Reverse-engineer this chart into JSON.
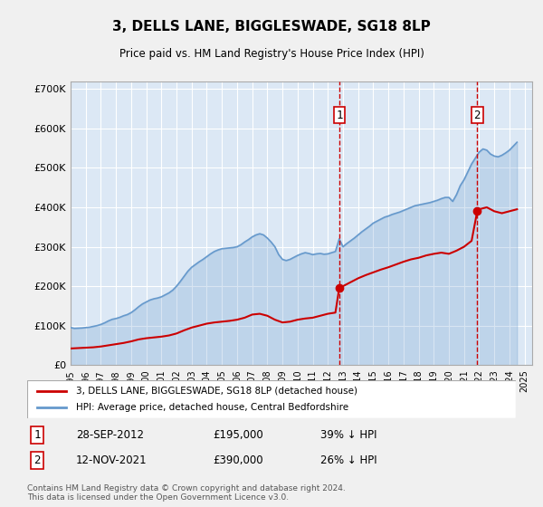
{
  "title": "3, DELLS LANE, BIGGLESWADE, SG18 8LP",
  "subtitle": "Price paid vs. HM Land Registry's House Price Index (HPI)",
  "ylabel_ticks": [
    "£0",
    "£100K",
    "£200K",
    "£300K",
    "£400K",
    "£500K",
    "£600K",
    "£700K"
  ],
  "ylim": [
    0,
    720000
  ],
  "xlim_start": 1995.0,
  "xlim_end": 2025.5,
  "background_color": "#e8f0f8",
  "plot_bg_color": "#dce8f5",
  "grid_color": "#ffffff",
  "line_red_color": "#cc0000",
  "line_blue_color": "#6699cc",
  "event1_x": 2012.75,
  "event1_y": 195000,
  "event2_x": 2021.87,
  "event2_y": 390000,
  "legend_line1": "3, DELLS LANE, BIGGLESWADE, SG18 8LP (detached house)",
  "legend_line2": "HPI: Average price, detached house, Central Bedfordshire",
  "annotation1_label": "1",
  "annotation1_date": "28-SEP-2012",
  "annotation1_price": "£195,000",
  "annotation1_pct": "39% ↓ HPI",
  "annotation2_label": "2",
  "annotation2_date": "12-NOV-2021",
  "annotation2_price": "£390,000",
  "annotation2_pct": "26% ↓ HPI",
  "footer": "Contains HM Land Registry data © Crown copyright and database right 2024.\nThis data is licensed under the Open Government Licence v3.0.",
  "hpi_data_x": [
    1995.0,
    1995.25,
    1995.5,
    1995.75,
    1996.0,
    1996.25,
    1996.5,
    1996.75,
    1997.0,
    1997.25,
    1997.5,
    1997.75,
    1998.0,
    1998.25,
    1998.5,
    1998.75,
    1999.0,
    1999.25,
    1999.5,
    1999.75,
    2000.0,
    2000.25,
    2000.5,
    2000.75,
    2001.0,
    2001.25,
    2001.5,
    2001.75,
    2002.0,
    2002.25,
    2002.5,
    2002.75,
    2003.0,
    2003.25,
    2003.5,
    2003.75,
    2004.0,
    2004.25,
    2004.5,
    2004.75,
    2005.0,
    2005.25,
    2005.5,
    2005.75,
    2006.0,
    2006.25,
    2006.5,
    2006.75,
    2007.0,
    2007.25,
    2007.5,
    2007.75,
    2008.0,
    2008.25,
    2008.5,
    2008.75,
    2009.0,
    2009.25,
    2009.5,
    2009.75,
    2010.0,
    2010.25,
    2010.5,
    2010.75,
    2011.0,
    2011.25,
    2011.5,
    2011.75,
    2012.0,
    2012.25,
    2012.5,
    2012.75,
    2013.0,
    2013.25,
    2013.5,
    2013.75,
    2014.0,
    2014.25,
    2014.5,
    2014.75,
    2015.0,
    2015.25,
    2015.5,
    2015.75,
    2016.0,
    2016.25,
    2016.5,
    2016.75,
    2017.0,
    2017.25,
    2017.5,
    2017.75,
    2018.0,
    2018.25,
    2018.5,
    2018.75,
    2019.0,
    2019.25,
    2019.5,
    2019.75,
    2020.0,
    2020.25,
    2020.5,
    2020.75,
    2021.0,
    2021.25,
    2021.5,
    2021.75,
    2022.0,
    2022.25,
    2022.5,
    2022.75,
    2023.0,
    2023.25,
    2023.5,
    2023.75,
    2024.0,
    2024.25,
    2024.5
  ],
  "hpi_data_y": [
    95000,
    93000,
    93500,
    94000,
    95000,
    96000,
    98000,
    100000,
    103000,
    107000,
    112000,
    116000,
    118000,
    121000,
    125000,
    128000,
    133000,
    140000,
    148000,
    155000,
    160000,
    165000,
    168000,
    170000,
    173000,
    178000,
    183000,
    190000,
    200000,
    212000,
    225000,
    238000,
    248000,
    255000,
    262000,
    268000,
    275000,
    282000,
    288000,
    292000,
    295000,
    296000,
    297000,
    298000,
    300000,
    305000,
    312000,
    318000,
    325000,
    330000,
    333000,
    330000,
    322000,
    312000,
    300000,
    280000,
    268000,
    265000,
    268000,
    273000,
    278000,
    282000,
    285000,
    283000,
    280000,
    282000,
    283000,
    281000,
    282000,
    285000,
    288000,
    320000,
    300000,
    308000,
    315000,
    322000,
    330000,
    338000,
    345000,
    352000,
    360000,
    365000,
    370000,
    375000,
    378000,
    382000,
    385000,
    388000,
    392000,
    396000,
    400000,
    404000,
    406000,
    408000,
    410000,
    412000,
    415000,
    418000,
    422000,
    425000,
    425000,
    415000,
    432000,
    455000,
    470000,
    490000,
    510000,
    525000,
    540000,
    548000,
    545000,
    535000,
    530000,
    528000,
    532000,
    538000,
    545000,
    555000,
    565000
  ],
  "red_data_x": [
    1995.0,
    1995.5,
    1996.0,
    1996.5,
    1997.0,
    1997.5,
    1998.0,
    1998.5,
    1999.0,
    1999.5,
    2000.0,
    2000.5,
    2001.0,
    2001.5,
    2002.0,
    2002.5,
    2003.0,
    2003.5,
    2004.0,
    2004.5,
    2005.0,
    2005.5,
    2006.0,
    2006.5,
    2007.0,
    2007.5,
    2008.0,
    2008.5,
    2009.0,
    2009.5,
    2010.0,
    2010.5,
    2011.0,
    2011.5,
    2012.0,
    2012.5,
    2012.75,
    2013.0,
    2013.5,
    2014.0,
    2014.5,
    2015.0,
    2015.5,
    2016.0,
    2016.5,
    2017.0,
    2017.5,
    2018.0,
    2018.5,
    2019.0,
    2019.5,
    2020.0,
    2020.5,
    2021.0,
    2021.5,
    2021.87,
    2022.0,
    2022.5,
    2023.0,
    2023.5,
    2024.0,
    2024.5
  ],
  "red_data_y": [
    42000,
    43000,
    44000,
    45000,
    47000,
    50000,
    53000,
    56000,
    60000,
    65000,
    68000,
    70000,
    72000,
    75000,
    80000,
    88000,
    95000,
    100000,
    105000,
    108000,
    110000,
    112000,
    115000,
    120000,
    128000,
    130000,
    125000,
    115000,
    108000,
    110000,
    115000,
    118000,
    120000,
    125000,
    130000,
    133000,
    195000,
    200000,
    210000,
    220000,
    228000,
    235000,
    242000,
    248000,
    255000,
    262000,
    268000,
    272000,
    278000,
    282000,
    285000,
    282000,
    290000,
    300000,
    315000,
    390000,
    395000,
    400000,
    390000,
    385000,
    390000,
    395000
  ]
}
